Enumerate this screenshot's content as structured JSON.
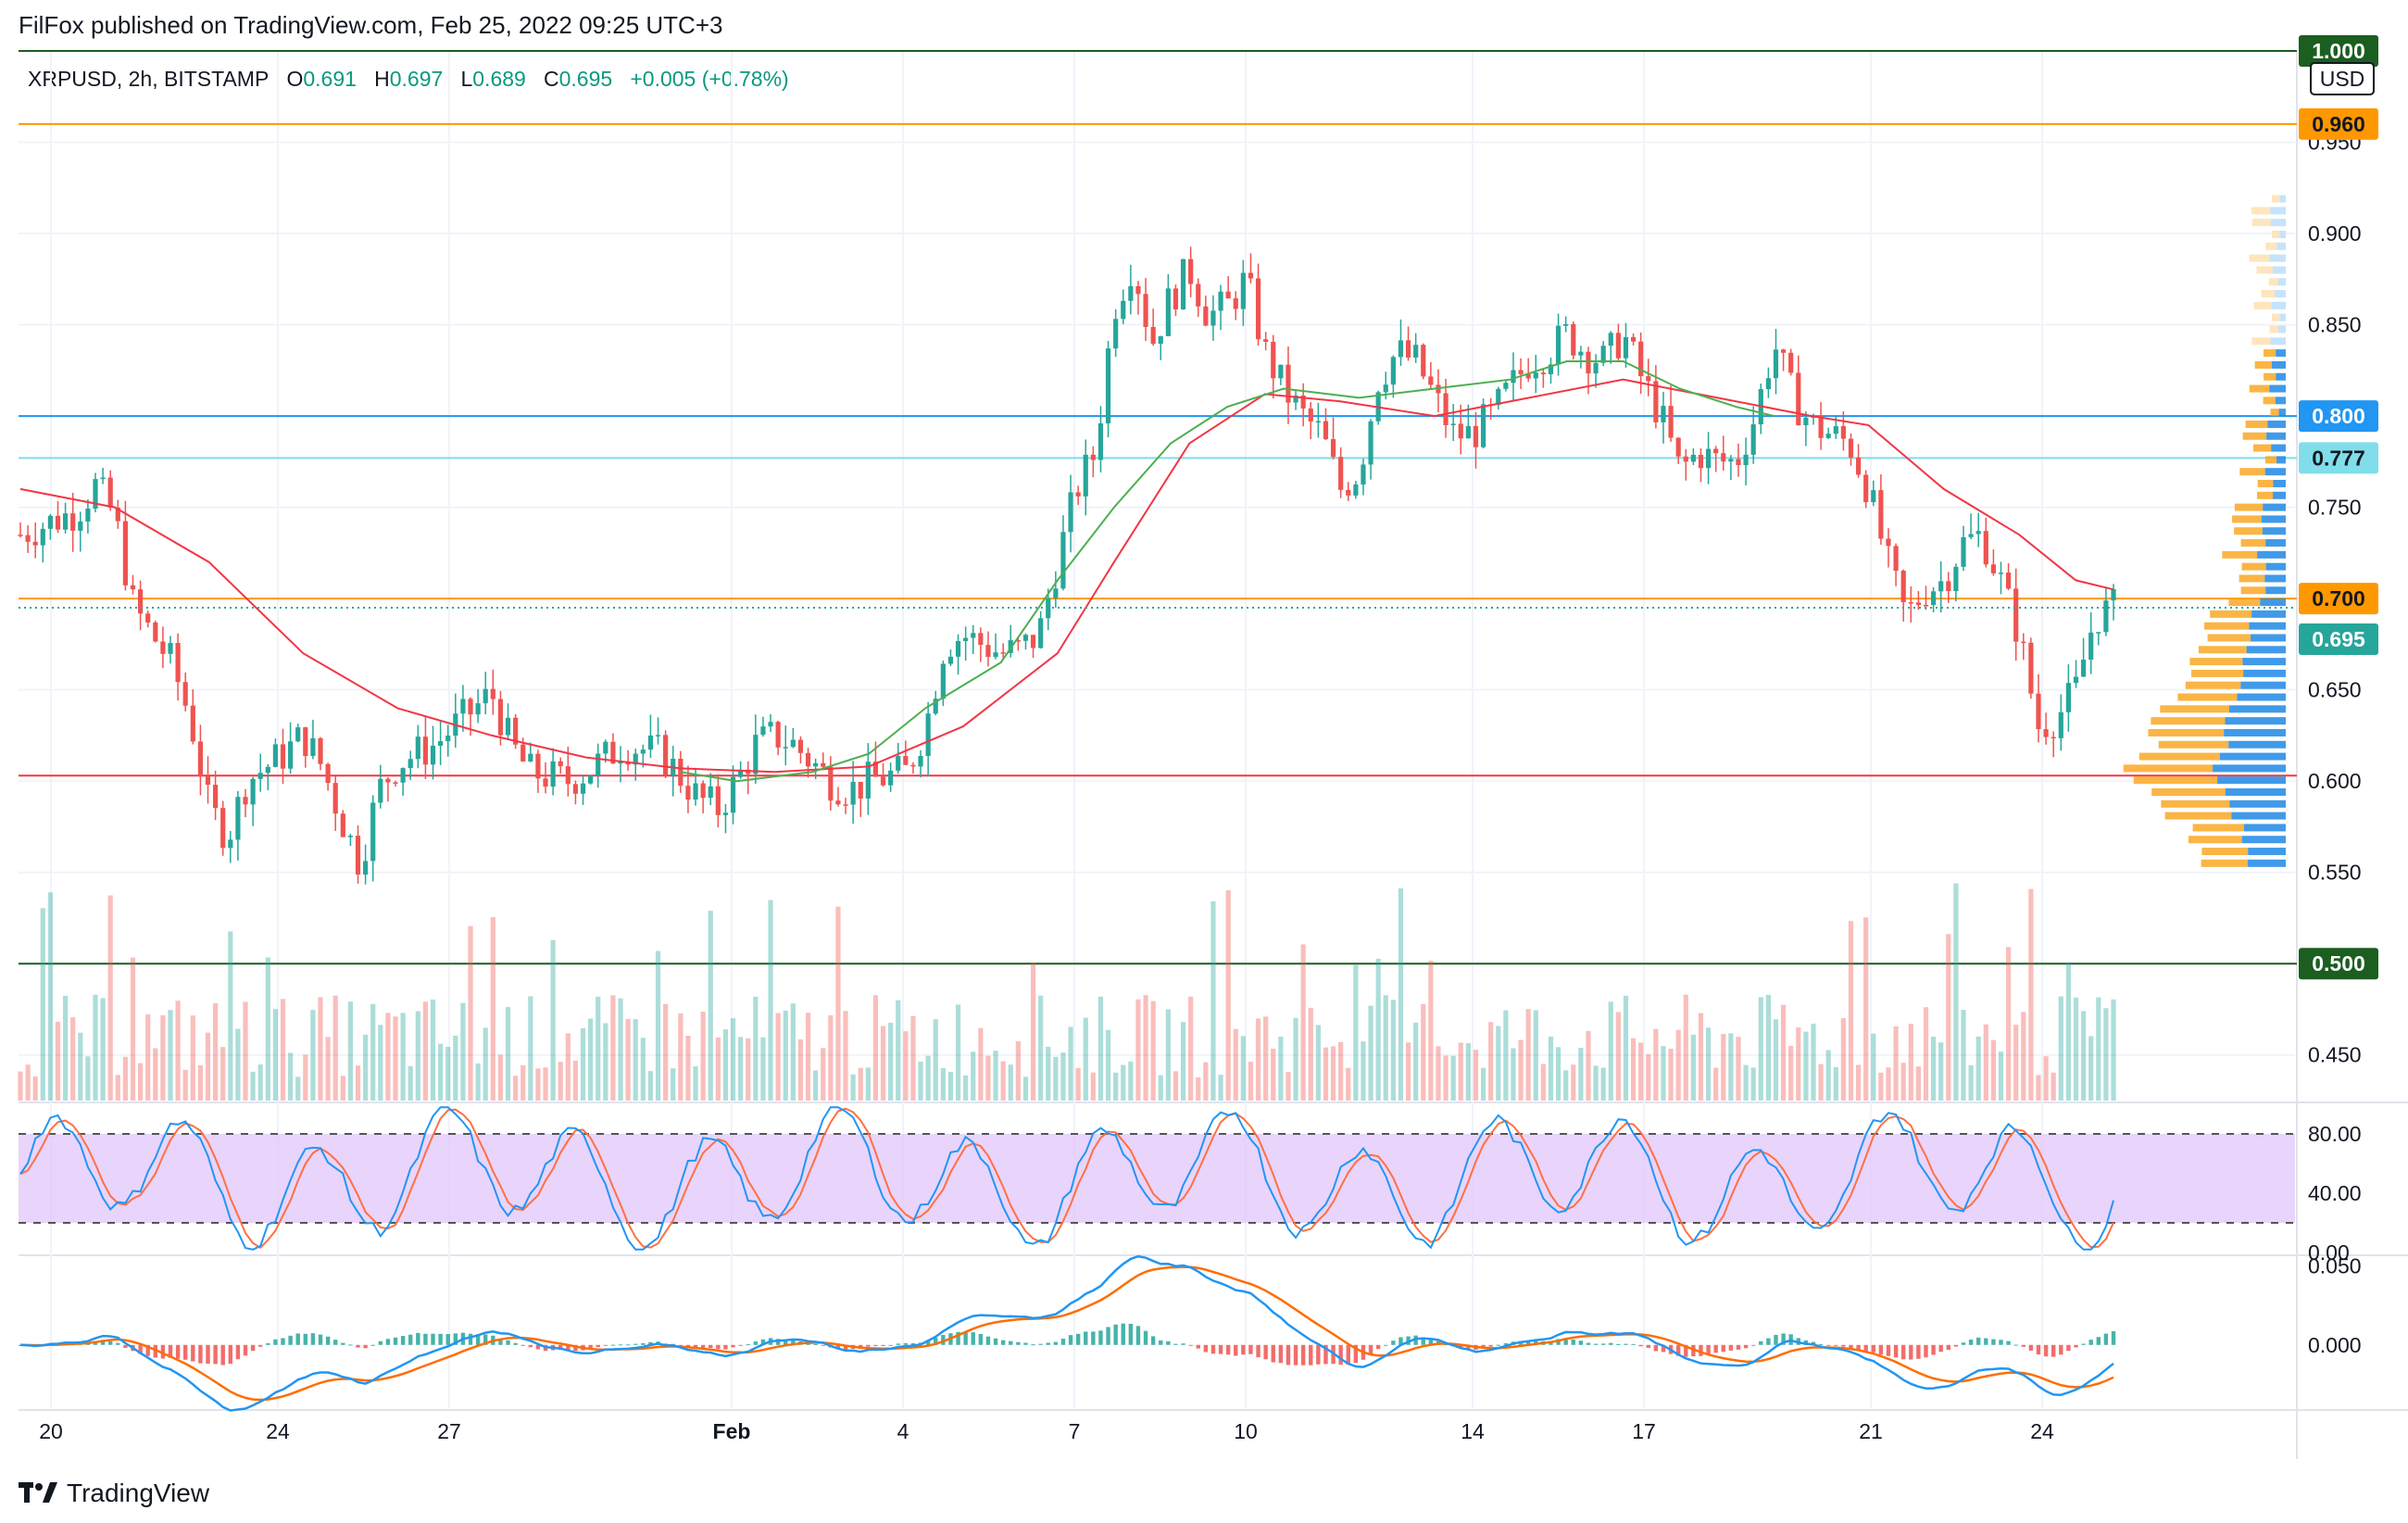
{
  "header": {
    "publisher_line": "FilFox published on TradingView.com, Feb 25, 2022 09:25 UTC+3"
  },
  "legend": {
    "symbol": "XRPUSD, 2h, BITSTAMP",
    "o_label": "O",
    "o_value": "0.691",
    "h_label": "H",
    "h_value": "0.697",
    "l_label": "L",
    "l_value": "0.689",
    "c_label": "C",
    "c_value": "0.695",
    "change": "+0.005 (+0.78%)"
  },
  "footer": {
    "brand": "TradingView"
  },
  "colors": {
    "up": "#26a69a",
    "down": "#ef5350",
    "ma_red": "#f23645",
    "ma_green": "#4caf50",
    "line_orange": "#ff9800",
    "line_blue": "#2962ff",
    "line_lightblue": "#80deea",
    "line_green": "#1b5e20",
    "line_red": "#f23645",
    "stoch_band": "#e1c6f9",
    "stoch_k": "#2196f3",
    "stoch_d": "#ff7043",
    "macd": "#2196f3",
    "signal": "#ff6d00"
  },
  "chart_data": [
    {
      "type": "candlestick",
      "currency": "USD",
      "x_tick_labels": [
        "20",
        "24",
        "27",
        "Feb",
        "4",
        "7",
        "10",
        "14",
        "17",
        "21",
        "24"
      ],
      "y_tick_labels": [
        "1.000",
        "0.950",
        "0.900",
        "0.850",
        "0.800",
        "0.750",
        "0.700",
        "0.650",
        "0.600",
        "0.550",
        "0.500",
        "0.450"
      ],
      "ylim": [
        0.425,
        1.0
      ],
      "horizontal_lines": [
        {
          "value": 1.0,
          "label": "1.000",
          "color": "#1b5e20"
        },
        {
          "value": 0.96,
          "label": "0.960",
          "color": "#ff9800"
        },
        {
          "value": 0.8,
          "label": "0.800",
          "color": "#2196f3"
        },
        {
          "value": 0.777,
          "label": "0.777",
          "color": "#80deea"
        },
        {
          "value": 0.7,
          "label": "0.700",
          "color": "#ff9800"
        },
        {
          "value": 0.603,
          "label": "",
          "color": "#f23645"
        },
        {
          "value": 0.5,
          "label": "0.500",
          "color": "#1b5e20"
        }
      ],
      "last_price": {
        "value": 0.695,
        "label": "0.695"
      },
      "close_path": [
        [
          0,
          0.735
        ],
        [
          3,
          0.748
        ],
        [
          4,
          0.762
        ],
        [
          5,
          0.745
        ],
        [
          6,
          0.695
        ],
        [
          8,
          0.665
        ],
        [
          9,
          0.635
        ],
        [
          10,
          0.585
        ],
        [
          11,
          0.57
        ],
        [
          12,
          0.6
        ],
        [
          14,
          0.615
        ],
        [
          15,
          0.625
        ],
        [
          16,
          0.608
        ],
        [
          17,
          0.58
        ],
        [
          18,
          0.555
        ],
        [
          19,
          0.595
        ],
        [
          20,
          0.61
        ],
        [
          22,
          0.62
        ],
        [
          23,
          0.63
        ],
        [
          25,
          0.648
        ],
        [
          26,
          0.62
        ],
        [
          27,
          0.605
        ],
        [
          29,
          0.6
        ],
        [
          30,
          0.605
        ],
        [
          32,
          0.62
        ],
        [
          34,
          0.615
        ],
        [
          36,
          0.59
        ],
        [
          37,
          0.585
        ],
        [
          38,
          0.6
        ],
        [
          39,
          0.62
        ],
        [
          40,
          0.625
        ],
        [
          41,
          0.62
        ],
        [
          42,
          0.61
        ],
        [
          43,
          0.6
        ],
        [
          44,
          0.595
        ],
        [
          45,
          0.6
        ],
        [
          47,
          0.605
        ],
        [
          48,
          0.63
        ],
        [
          49,
          0.675
        ],
        [
          50,
          0.68
        ],
        [
          52,
          0.67
        ],
        [
          53,
          0.672
        ],
        [
          54,
          0.68
        ],
        [
          55,
          0.72
        ],
        [
          56,
          0.76
        ],
        [
          57,
          0.78
        ],
        [
          58,
          0.86
        ],
        [
          59,
          0.885
        ],
        [
          60,
          0.84
        ],
        [
          61,
          0.865
        ],
        [
          62,
          0.88
        ],
        [
          63,
          0.855
        ],
        [
          64,
          0.86
        ],
        [
          65,
          0.875
        ],
        [
          66,
          0.835
        ],
        [
          67,
          0.815
        ],
        [
          68,
          0.8
        ],
        [
          69,
          0.79
        ],
        [
          70,
          0.76
        ],
        [
          71,
          0.77
        ],
        [
          72,
          0.82
        ],
        [
          73,
          0.835
        ],
        [
          74,
          0.83
        ],
        [
          75,
          0.81
        ],
        [
          76,
          0.79
        ],
        [
          77,
          0.79
        ],
        [
          78,
          0.8
        ],
        [
          79,
          0.815
        ],
        [
          80,
          0.83
        ],
        [
          81,
          0.835
        ],
        [
          82,
          0.845
        ],
        [
          83,
          0.835
        ],
        [
          84,
          0.83
        ],
        [
          85,
          0.845
        ],
        [
          86,
          0.82
        ],
        [
          87,
          0.8
        ],
        [
          88,
          0.77
        ],
        [
          89,
          0.78
        ],
        [
          90,
          0.775
        ],
        [
          91,
          0.775
        ],
        [
          92,
          0.8
        ],
        [
          93,
          0.84
        ],
        [
          94,
          0.81
        ],
        [
          95,
          0.795
        ],
        [
          96,
          0.79
        ],
        [
          97,
          0.785
        ],
        [
          98,
          0.76
        ],
        [
          99,
          0.72
        ],
        [
          100,
          0.69
        ],
        [
          101,
          0.705
        ],
        [
          102,
          0.71
        ],
        [
          103,
          0.73
        ],
        [
          104,
          0.735
        ],
        [
          105,
          0.71
        ],
        [
          106,
          0.68
        ],
        [
          107,
          0.63
        ],
        [
          108,
          0.635
        ],
        [
          109,
          0.65
        ],
        [
          110,
          0.69
        ],
        [
          111,
          0.695
        ]
      ],
      "moving_averages": [
        {
          "color": "#f23645",
          "points": [
            [
              0,
              0.76
            ],
            [
              5,
              0.75
            ],
            [
              10,
              0.72
            ],
            [
              15,
              0.67
            ],
            [
              20,
              0.64
            ],
            [
              25,
              0.625
            ],
            [
              30,
              0.613
            ],
            [
              35,
              0.607
            ],
            [
              40,
              0.605
            ],
            [
              45,
              0.608
            ],
            [
              50,
              0.63
            ],
            [
              55,
              0.67
            ],
            [
              58,
              0.72
            ],
            [
              62,
              0.785
            ],
            [
              66,
              0.812
            ],
            [
              70,
              0.808
            ],
            [
              75,
              0.8
            ],
            [
              80,
              0.81
            ],
            [
              85,
              0.82
            ],
            [
              90,
              0.81
            ],
            [
              95,
              0.8
            ],
            [
              98,
              0.795
            ],
            [
              102,
              0.76
            ],
            [
              106,
              0.735
            ],
            [
              109,
              0.71
            ],
            [
              111,
              0.705
            ]
          ]
        },
        {
          "color": "#4caf50",
          "points": [
            [
              35,
              0.605
            ],
            [
              38,
              0.6
            ],
            [
              42,
              0.605
            ],
            [
              45,
              0.615
            ],
            [
              48,
              0.64
            ],
            [
              52,
              0.665
            ],
            [
              55,
              0.71
            ],
            [
              58,
              0.75
            ],
            [
              61,
              0.785
            ],
            [
              64,
              0.805
            ],
            [
              67,
              0.815
            ],
            [
              71,
              0.81
            ],
            [
              75,
              0.815
            ],
            [
              79,
              0.82
            ],
            [
              82,
              0.83
            ],
            [
              85,
              0.83
            ],
            [
              88,
              0.815
            ],
            [
              91,
              0.805
            ],
            [
              93,
              0.8
            ]
          ]
        }
      ]
    },
    {
      "type": "bar",
      "name": "Volume",
      "note": "volume histogram overlaid at bottom of price pane"
    },
    {
      "type": "line",
      "name": "Stochastic",
      "y_tick_labels": [
        "80.00",
        "40.00",
        "0.00"
      ],
      "ylim": [
        0,
        100
      ],
      "bands": [
        20,
        80
      ]
    },
    {
      "type": "line",
      "name": "MACD",
      "y_tick_labels": [
        "0.050",
        "0.000"
      ],
      "ylim": [
        -0.04,
        0.055
      ]
    }
  ]
}
